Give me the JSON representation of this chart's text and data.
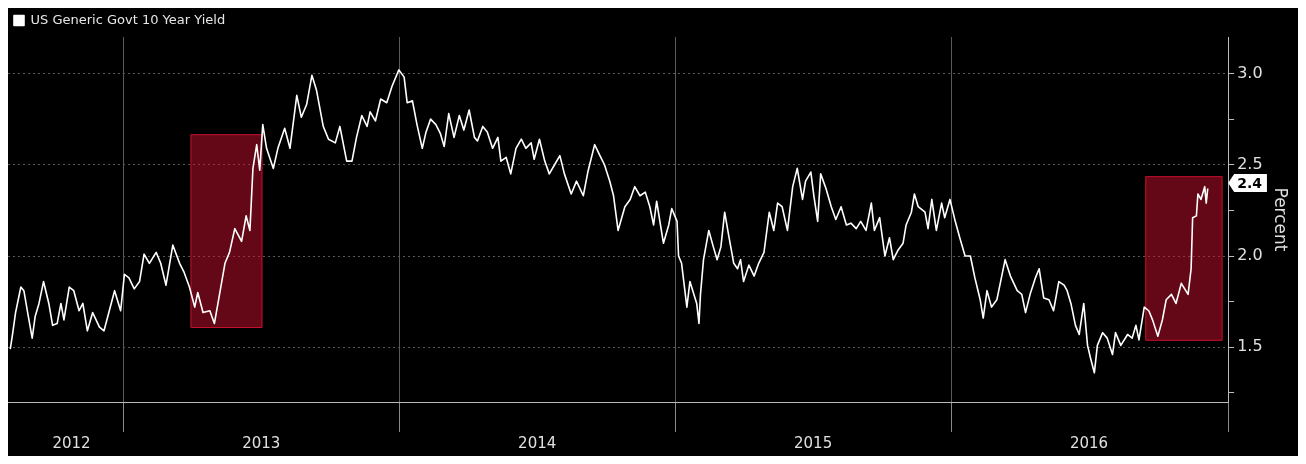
{
  "chart_data": {
    "type": "line",
    "ylabel": "Percent",
    "legend": "top left",
    "grid": true,
    "marker": "none",
    "line_style": "solid",
    "xlim": [
      "2012-08-01",
      "2017-01-01"
    ],
    "xticks": [
      {
        "value": "2012-10-24",
        "label": "2012"
      },
      {
        "value": "2013-01-01",
        "label": null
      },
      {
        "value": "2013-07-02",
        "label": "2013"
      },
      {
        "value": "2014-01-01",
        "label": null
      },
      {
        "value": "2014-07-02",
        "label": "2014"
      },
      {
        "value": "2015-01-01",
        "label": null
      },
      {
        "value": "2015-07-02",
        "label": "2015"
      },
      {
        "value": "2016-01-01",
        "label": null
      },
      {
        "value": "2016-07-01",
        "label": "2016"
      },
      {
        "value": "2017-01-01",
        "label": null
      }
    ],
    "ylim": [
      1.2,
      3.2
    ],
    "yticks": [
      {
        "value": 1.25,
        "label": null
      },
      {
        "value": 1.5,
        "label": "1.5"
      },
      {
        "value": 1.75,
        "label": null
      },
      {
        "value": 2,
        "label": "2.0"
      },
      {
        "value": 2.25,
        "label": null
      },
      {
        "value": 2.5,
        "label": "2.5"
      },
      {
        "value": 2.75,
        "label": null
      },
      {
        "value": 3,
        "label": "3.0"
      }
    ],
    "bands": [
      {
        "axis": "x",
        "from": "2013-03-31",
        "to": "2013-07-03",
        "color": "#c8102e"
      },
      {
        "axis": "x",
        "from": "2016-09-14",
        "to": "2016-12-24",
        "color": "#c8102e"
      }
    ],
    "annotations": [
      {
        "text": "2.4",
        "y": 2.4
      }
    ],
    "series": [
      {
        "name": "US Generic Govt 10 Year Yield",
        "color": "#ffffff",
        "x": [
          "2012-08-04",
          "2012-08-07",
          "2012-08-11",
          "2012-08-18",
          "2012-08-22",
          "2012-08-27",
          "2012-09-02",
          "2012-09-06",
          "2012-09-11",
          "2012-09-17",
          "2012-09-24",
          "2012-09-29",
          "2012-10-05",
          "2012-10-10",
          "2012-10-14",
          "2012-10-21",
          "2012-10-27",
          "2012-11-03",
          "2012-11-08",
          "2012-11-14",
          "2012-11-21",
          "2012-11-30",
          "2012-12-06",
          "2012-12-13",
          "2012-12-20",
          "2012-12-28",
          "2013-01-02",
          "2013-01-08",
          "2013-01-15",
          "2013-01-22",
          "2013-01-28",
          "2013-02-04",
          "2013-02-13",
          "2013-02-19",
          "2013-02-26",
          "2013-03-07",
          "2013-03-16",
          "2013-03-22",
          "2013-03-29",
          "2013-04-05",
          "2013-04-09",
          "2013-04-16",
          "2013-04-25",
          "2013-05-01",
          "2013-05-07",
          "2013-05-15",
          "2013-05-21",
          "2013-05-28",
          "2013-06-06",
          "2013-06-12",
          "2013-06-17",
          "2013-06-21",
          "2013-06-26",
          "2013-06-30",
          "2013-07-04",
          "2013-07-09",
          "2013-07-18",
          "2013-07-24",
          "2013-08-02",
          "2013-08-09",
          "2013-08-18",
          "2013-08-24",
          "2013-08-31",
          "2013-09-07",
          "2013-09-13",
          "2013-09-22",
          "2013-09-29",
          "2013-10-08",
          "2013-10-14",
          "2013-10-23",
          "2013-10-30",
          "2013-11-05",
          "2013-11-12",
          "2013-11-19",
          "2013-11-23",
          "2013-11-30",
          "2013-12-07",
          "2013-12-15",
          "2013-12-22",
          "2013-12-31",
          "2014-01-07",
          "2014-01-11",
          "2014-01-18",
          "2014-01-24",
          "2014-01-31",
          "2014-02-05",
          "2014-02-11",
          "2014-02-18",
          "2014-02-24",
          "2014-03-01",
          "2014-03-07",
          "2014-03-14",
          "2014-03-21",
          "2014-03-27",
          "2014-04-03",
          "2014-04-10",
          "2014-04-14",
          "2014-04-21",
          "2014-04-27",
          "2014-05-04",
          "2014-05-11",
          "2014-05-15",
          "2014-05-22",
          "2014-05-28",
          "2014-06-04",
          "2014-06-11",
          "2014-06-17",
          "2014-06-24",
          "2014-06-28",
          "2014-07-05",
          "2014-07-12",
          "2014-07-18",
          "2014-07-25",
          "2014-08-01",
          "2014-08-07",
          "2014-08-16",
          "2014-08-23",
          "2014-09-01",
          "2014-09-07",
          "2014-09-16",
          "2014-09-23",
          "2014-09-29",
          "2014-10-06",
          "2014-10-11",
          "2014-10-17",
          "2014-10-26",
          "2014-11-02",
          "2014-11-08",
          "2014-11-15",
          "2014-11-22",
          "2014-11-28",
          "2014-12-03",
          "2014-12-07",
          "2014-12-16",
          "2014-12-23",
          "2014-12-27",
          "2015-01-03",
          "2015-01-05",
          "2015-01-09",
          "2015-01-16",
          "2015-01-20",
          "2015-01-29",
          "2015-02-01",
          "2015-02-03",
          "2015-02-07",
          "2015-02-14",
          "2015-02-20",
          "2015-02-25",
          "2015-03-02",
          "2015-03-07",
          "2015-03-12",
          "2015-03-19",
          "2015-03-24",
          "2015-03-28",
          "2015-04-01",
          "2015-04-08",
          "2015-04-15",
          "2015-04-21",
          "2015-04-28",
          "2015-05-05",
          "2015-05-11",
          "2015-05-16",
          "2015-05-22",
          "2015-05-29",
          "2015-06-05",
          "2015-06-11",
          "2015-06-18",
          "2015-06-22",
          "2015-06-29",
          "2015-07-03",
          "2015-07-08",
          "2015-07-12",
          "2015-07-19",
          "2015-07-26",
          "2015-08-01",
          "2015-08-08",
          "2015-08-15",
          "2015-08-21",
          "2015-08-28",
          "2015-09-03",
          "2015-09-10",
          "2015-09-17",
          "2015-09-21",
          "2015-09-28",
          "2015-10-05",
          "2015-10-11",
          "2015-10-16",
          "2015-10-22",
          "2015-10-29",
          "2015-11-02",
          "2015-11-09",
          "2015-11-13",
          "2015-11-18",
          "2015-11-27",
          "2015-12-01",
          "2015-12-06",
          "2015-12-12",
          "2015-12-19",
          "2015-12-23",
          "2015-12-30",
          "2016-01-06",
          "2016-01-12",
          "2016-01-19",
          "2016-01-26",
          "2016-02-01",
          "2016-02-08",
          "2016-02-12",
          "2016-02-17",
          "2016-02-23",
          "2016-03-01",
          "2016-03-06",
          "2016-03-12",
          "2016-03-19",
          "2016-03-28",
          "2016-04-03",
          "2016-04-08",
          "2016-04-14",
          "2016-04-21",
          "2016-04-26",
          "2016-05-02",
          "2016-05-09",
          "2016-05-15",
          "2016-05-22",
          "2016-05-29",
          "2016-06-02",
          "2016-06-07",
          "2016-06-13",
          "2016-06-18",
          "2016-06-24",
          "2016-06-29",
          "2016-07-03",
          "2016-07-08",
          "2016-07-12",
          "2016-07-19",
          "2016-07-25",
          "2016-08-01",
          "2016-08-05",
          "2016-08-12",
          "2016-08-21",
          "2016-08-27",
          "2016-09-01",
          "2016-09-05",
          "2016-09-12",
          "2016-09-18",
          "2016-09-23",
          "2016-09-30",
          "2016-10-06",
          "2016-10-11",
          "2016-10-18",
          "2016-10-24",
          "2016-10-31",
          "2016-11-09",
          "2016-11-13",
          "2016-11-15",
          "2016-11-20",
          "2016-11-22",
          "2016-11-26",
          "2016-12-01",
          "2016-12-03",
          "2016-12-05"
        ],
        "values": [
          1.49,
          1.57,
          1.69,
          1.83,
          1.81,
          1.69,
          1.55,
          1.67,
          1.74,
          1.86,
          1.74,
          1.62,
          1.63,
          1.74,
          1.65,
          1.83,
          1.81,
          1.7,
          1.74,
          1.59,
          1.69,
          1.61,
          1.59,
          1.7,
          1.81,
          1.7,
          1.9,
          1.88,
          1.82,
          1.86,
          2.01,
          1.96,
          2.02,
          1.96,
          1.84,
          2.06,
          1.96,
          1.91,
          1.83,
          1.72,
          1.8,
          1.69,
          1.7,
          1.63,
          1.77,
          1.96,
          2.02,
          2.15,
          2.08,
          2.22,
          2.14,
          2.48,
          2.61,
          2.47,
          2.72,
          2.59,
          2.48,
          2.59,
          2.7,
          2.59,
          2.88,
          2.76,
          2.83,
          2.99,
          2.91,
          2.71,
          2.64,
          2.62,
          2.71,
          2.52,
          2.52,
          2.65,
          2.77,
          2.71,
          2.79,
          2.74,
          2.86,
          2.84,
          2.93,
          3.02,
          2.98,
          2.84,
          2.85,
          2.72,
          2.59,
          2.68,
          2.75,
          2.72,
          2.67,
          2.6,
          2.78,
          2.65,
          2.77,
          2.69,
          2.8,
          2.65,
          2.63,
          2.71,
          2.68,
          2.59,
          2.65,
          2.52,
          2.54,
          2.45,
          2.59,
          2.64,
          2.59,
          2.62,
          2.53,
          2.64,
          2.52,
          2.45,
          2.5,
          2.55,
          2.45,
          2.34,
          2.41,
          2.33,
          2.46,
          2.61,
          2.55,
          2.5,
          2.41,
          2.33,
          2.14,
          2.27,
          2.31,
          2.38,
          2.33,
          2.35,
          2.27,
          2.17,
          2.3,
          2.07,
          2.17,
          2.26,
          2.19,
          2.0,
          1.96,
          1.72,
          1.86,
          1.74,
          1.63,
          1.79,
          1.98,
          2.14,
          2.05,
          1.98,
          2.05,
          2.24,
          2.12,
          1.96,
          1.93,
          1.98,
          1.86,
          1.95,
          1.89,
          1.96,
          2.02,
          2.24,
          2.14,
          2.29,
          2.27,
          2.14,
          2.38,
          2.48,
          2.31,
          2.41,
          2.46,
          2.33,
          2.19,
          2.45,
          2.37,
          2.27,
          2.2,
          2.27,
          2.17,
          2.18,
          2.15,
          2.19,
          2.14,
          2.29,
          2.14,
          2.21,
          2.0,
          2.1,
          1.98,
          2.03,
          2.07,
          2.17,
          2.24,
          2.34,
          2.27,
          2.24,
          2.15,
          2.31,
          2.14,
          2.29,
          2.21,
          2.31,
          2.19,
          2.1,
          2.0,
          2.0,
          1.88,
          1.76,
          1.66,
          1.81,
          1.72,
          1.76,
          1.86,
          1.98,
          1.89,
          1.81,
          1.79,
          1.69,
          1.79,
          1.88,
          1.93,
          1.77,
          1.76,
          1.7,
          1.86,
          1.84,
          1.81,
          1.74,
          1.62,
          1.57,
          1.74,
          1.51,
          1.44,
          1.36,
          1.51,
          1.58,
          1.55,
          1.46,
          1.58,
          1.51,
          1.57,
          1.55,
          1.62,
          1.54,
          1.72,
          1.7,
          1.65,
          1.56,
          1.65,
          1.76,
          1.79,
          1.74,
          1.85,
          1.79,
          1.93,
          2.21,
          2.22,
          2.34,
          2.31,
          2.38,
          2.29,
          2.37
        ]
      }
    ]
  }
}
